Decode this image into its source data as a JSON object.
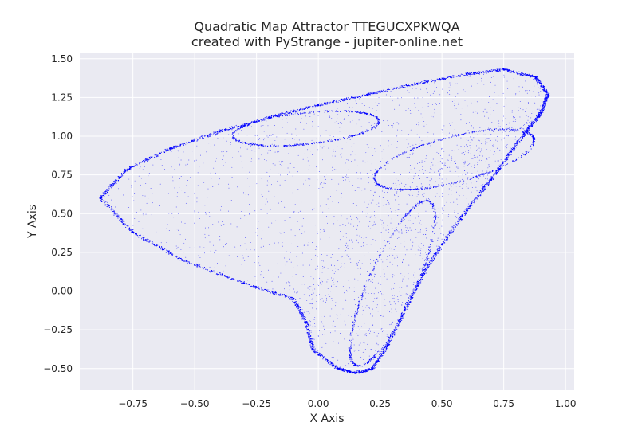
{
  "chart_data": {
    "type": "scatter",
    "title": "Quadratic Map Attractor TTEGUCXPKWQA",
    "subtitle": "created with PyStrange - jupiter-online.net",
    "xlabel": "X Axis",
    "ylabel": "Y Axis",
    "xlim": [
      -0.965,
      1.035
    ],
    "ylim": [
      -0.64,
      1.54
    ],
    "xticks": [
      -0.75,
      -0.5,
      -0.25,
      0.0,
      0.25,
      0.5,
      0.75,
      1.0
    ],
    "xtick_labels": [
      "−0.75",
      "−0.50",
      "−0.25",
      "0.00",
      "0.25",
      "0.50",
      "0.75",
      "1.00"
    ],
    "yticks": [
      -0.5,
      -0.25,
      0.0,
      0.25,
      0.5,
      0.75,
      1.0,
      1.25,
      1.5
    ],
    "ytick_labels": [
      "−0.50",
      "−0.25",
      "0.00",
      "0.25",
      "0.50",
      "0.75",
      "1.00",
      "1.25",
      "1.50"
    ],
    "grid": true,
    "point_color": "#0000ff",
    "background_color": "#eaeaf2",
    "grid_color": "#ffffff",
    "outline_points": [
      [
        -0.88,
        0.6
      ],
      [
        -0.78,
        0.78
      ],
      [
        -0.6,
        0.92
      ],
      [
        -0.4,
        1.03
      ],
      [
        -0.2,
        1.12
      ],
      [
        0.0,
        1.2
      ],
      [
        0.2,
        1.27
      ],
      [
        0.4,
        1.34
      ],
      [
        0.6,
        1.4
      ],
      [
        0.75,
        1.43
      ],
      [
        0.88,
        1.38
      ],
      [
        0.93,
        1.27
      ],
      [
        0.9,
        1.15
      ],
      [
        0.85,
        1.05
      ],
      [
        0.78,
        0.9
      ],
      [
        0.7,
        0.72
      ],
      [
        0.6,
        0.52
      ],
      [
        0.5,
        0.3
      ],
      [
        0.42,
        0.1
      ],
      [
        0.35,
        -0.12
      ],
      [
        0.28,
        -0.35
      ],
      [
        0.22,
        -0.5
      ],
      [
        0.15,
        -0.53
      ],
      [
        0.08,
        -0.5
      ],
      [
        -0.02,
        -0.38
      ],
      [
        -0.05,
        -0.2
      ],
      [
        -0.1,
        -0.05
      ],
      [
        -0.3,
        0.05
      ],
      [
        -0.55,
        0.2
      ],
      [
        -0.75,
        0.38
      ],
      [
        -0.88,
        0.6
      ]
    ]
  }
}
